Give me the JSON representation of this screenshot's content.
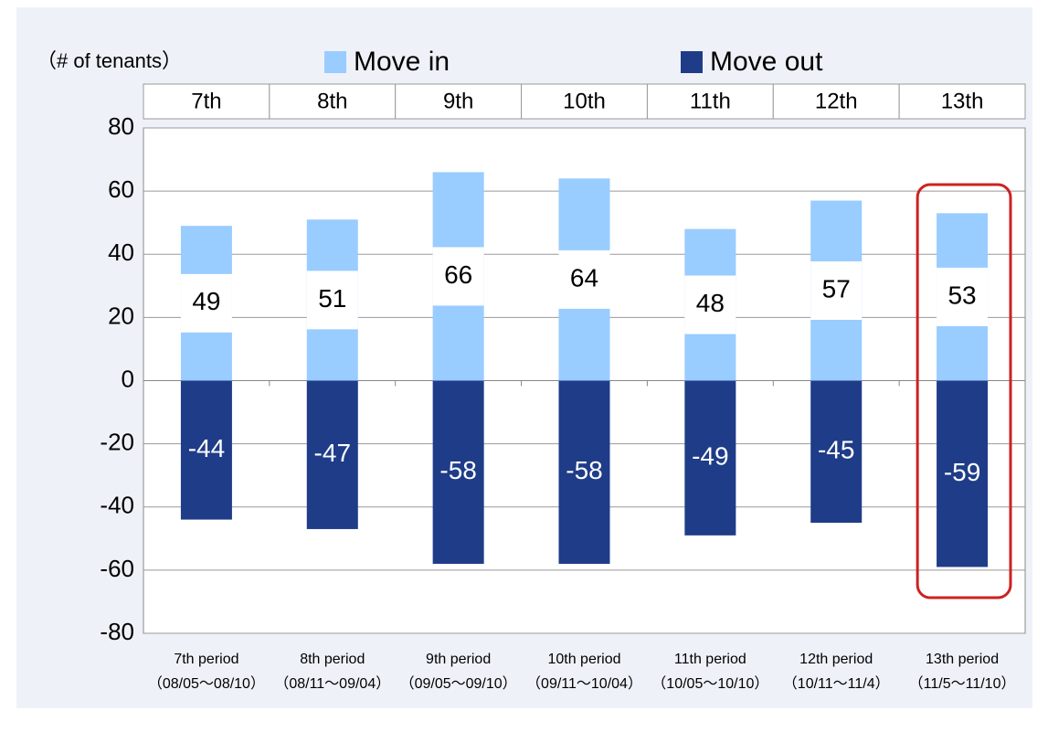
{
  "chart_data": {
    "type": "bar",
    "y_axis_label": "（# of tenants）",
    "header_labels": [
      "7th",
      "8th",
      "9th",
      "10th",
      "11th",
      "12th",
      "13th"
    ],
    "categories": [
      "7th period",
      "8th period",
      "9th period",
      "10th period",
      "11th period",
      "12th period",
      "13th period"
    ],
    "date_ranges": [
      "（08/05～08/10）",
      "（08/11～09/04）",
      "（09/05～09/10）",
      "（09/11～10/04）",
      "（10/05～10/10）",
      "（10/11～11/4）",
      "（11/5～11/10）"
    ],
    "series": [
      {
        "name": "Move in",
        "color": "#99ccff",
        "values": [
          49,
          51,
          66,
          64,
          48,
          57,
          53
        ]
      },
      {
        "name": "Move out",
        "color": "#1f3c88",
        "values": [
          -44,
          -47,
          -58,
          -58,
          -49,
          -45,
          -59
        ]
      }
    ],
    "ylim": [
      -80,
      80
    ],
    "yticks": [
      -80,
      -60,
      -40,
      -20,
      0,
      20,
      40,
      60,
      80
    ],
    "grid": true
  }
}
